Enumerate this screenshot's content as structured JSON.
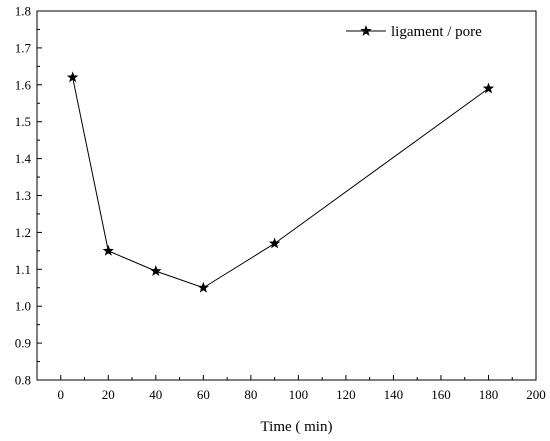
{
  "chart_data": {
    "type": "line",
    "title": "",
    "xlabel": "Time ( min)",
    "ylabel": "",
    "xlim": [
      -10,
      200
    ],
    "ylim": [
      0.8,
      1.8
    ],
    "xticks": [
      0,
      20,
      40,
      60,
      80,
      100,
      120,
      140,
      160,
      180,
      200
    ],
    "yticks": [
      0.8,
      0.9,
      1.0,
      1.1,
      1.2,
      1.3,
      1.4,
      1.5,
      1.6,
      1.7,
      1.8
    ],
    "x_tick_labels": [
      "0",
      "20",
      "40",
      "60",
      "80",
      "100",
      "120",
      "140",
      "160",
      "180",
      "200"
    ],
    "y_tick_labels": [
      "0.8",
      "0.9",
      "1.0",
      "1.1",
      "1.2",
      "1.3",
      "1.4",
      "1.5",
      "1.6",
      "1.7",
      "1.8"
    ],
    "grid": false,
    "legend_position": "top-right",
    "marker": "star",
    "series": [
      {
        "name": "ligament / pore",
        "color": "#000000",
        "x": [
          5,
          20,
          40,
          60,
          90,
          180
        ],
        "y": [
          1.62,
          1.15,
          1.095,
          1.05,
          1.17,
          1.59
        ]
      }
    ]
  }
}
